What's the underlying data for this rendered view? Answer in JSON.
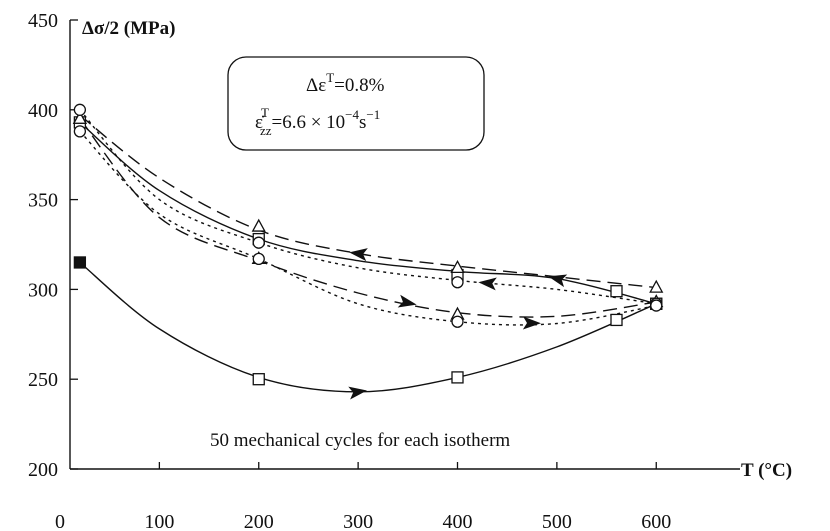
{
  "chart_data": {
    "type": "line",
    "ylabel": "Δσ/2 (MPa)",
    "xlabel": "T (°C)",
    "xlim": [
      0,
      640
    ],
    "ylim": [
      200,
      450
    ],
    "x_ticks": [
      0,
      100,
      200,
      300,
      400,
      500,
      600
    ],
    "y_ticks": [
      200,
      250,
      300,
      350,
      400,
      450
    ],
    "grid": false,
    "legend": "none",
    "annotation": {
      "line1": "Δε",
      "line1_sup": "T",
      "line1_tail": "=0.8%",
      "line2": "ε̇",
      "line2_sup": "T",
      "line2_sub": "zz",
      "line2_tail": "=6.6 × 10",
      "line2_exp": "−4",
      "line2_unit": "s",
      "line2_unit_exp": "−1"
    },
    "note": "50 mechanical cycles for each isotherm",
    "series": [
      {
        "style": "solid",
        "marker": "square-open",
        "first_marker": "square-filled",
        "x": [
          20,
          200,
          400,
          560,
          600
        ],
        "y": [
          315,
          250,
          251,
          283,
          292
        ],
        "curve": [
          [
            20,
            315
          ],
          [
            100,
            278
          ],
          [
            200,
            251
          ],
          [
            300,
            243
          ],
          [
            400,
            251
          ],
          [
            500,
            268
          ],
          [
            600,
            292
          ]
        ],
        "arrow_at": 300,
        "arrow_dir": "right"
      },
      {
        "style": "solid",
        "marker": "square-open",
        "x": [
          20,
          200,
          400,
          560,
          600
        ],
        "y": [
          393,
          328,
          308,
          299,
          292
        ],
        "curve": [
          [
            20,
            393
          ],
          [
            100,
            355
          ],
          [
            200,
            328
          ],
          [
            300,
            316
          ],
          [
            400,
            310
          ],
          [
            500,
            306
          ],
          [
            600,
            292
          ]
        ],
        "arrow_at": 500,
        "arrow_dir": "left"
      },
      {
        "style": "dashed",
        "marker": "triangle-open",
        "x": [
          20,
          200,
          400,
          600
        ],
        "y": [
          395,
          335,
          312,
          301
        ],
        "curve": [
          [
            20,
            397
          ],
          [
            100,
            362
          ],
          [
            200,
            333
          ],
          [
            300,
            320
          ],
          [
            400,
            313
          ],
          [
            500,
            307
          ],
          [
            600,
            301
          ]
        ],
        "arrow_at": 300,
        "arrow_dir": "left"
      },
      {
        "style": "dashed",
        "marker": "triangle-open",
        "x": [
          20,
          200,
          400,
          600
        ],
        "y": [
          395,
          317,
          286,
          293
        ],
        "curve": [
          [
            20,
            395
          ],
          [
            100,
            340
          ],
          [
            200,
            316
          ],
          [
            300,
            298
          ],
          [
            400,
            287
          ],
          [
            500,
            285
          ],
          [
            600,
            293
          ]
        ],
        "arrow_at": 350,
        "arrow_dir": "right"
      },
      {
        "style": "dotted",
        "marker": "circle-open",
        "x": [
          20,
          200,
          400,
          600
        ],
        "y": [
          400,
          326,
          304,
          292
        ],
        "curve": [
          [
            20,
            400
          ],
          [
            100,
            350
          ],
          [
            200,
            326
          ],
          [
            300,
            312
          ],
          [
            400,
            305
          ],
          [
            500,
            300
          ],
          [
            600,
            292
          ]
        ],
        "arrow_at": 430,
        "arrow_dir": "left"
      },
      {
        "style": "dotted",
        "marker": "circle-open",
        "x": [
          20,
          200,
          400,
          600
        ],
        "y": [
          388,
          317,
          282,
          291
        ],
        "curve": [
          [
            20,
            388
          ],
          [
            100,
            342
          ],
          [
            200,
            317
          ],
          [
            300,
            292
          ],
          [
            400,
            282
          ],
          [
            500,
            281
          ],
          [
            600,
            291
          ]
        ],
        "arrow_at": 475,
        "arrow_dir": "right"
      }
    ]
  }
}
